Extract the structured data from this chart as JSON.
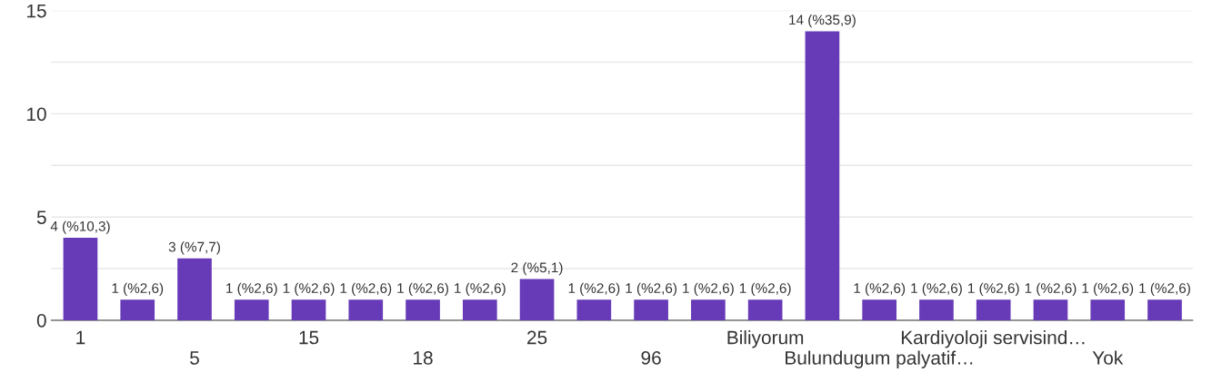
{
  "chart_data": {
    "type": "bar",
    "categories": [
      "1",
      null,
      "5",
      null,
      "15",
      null,
      "18",
      null,
      "25",
      null,
      "96",
      null,
      "Biliyorum",
      null,
      "Bulundugum palyatif…",
      null,
      "Kardiyoloji servisind…",
      null,
      "Yok",
      null
    ],
    "values": [
      4,
      1,
      3,
      1,
      1,
      1,
      1,
      1,
      2,
      1,
      1,
      1,
      1,
      14,
      1,
      1,
      1,
      1,
      1,
      1
    ],
    "value_labels": [
      "4 (%10,3)",
      "1 (%2,6)",
      "3 (%7,7)",
      "1 (%2,6)",
      "1 (%2,6)",
      "1 (%2,6)",
      "1 (%2,6)",
      "1 (%2,6)",
      "2 (%5,1)",
      "1 (%2,6)",
      "1 (%2,6)",
      "1 (%2,6)",
      "1 (%2,6)",
      "14 (%35,9)",
      "1 (%2,6)",
      "1 (%2,6)",
      "1 (%2,6)",
      "1 (%2,6)",
      "1 (%2,6)",
      "1 (%2,6)"
    ],
    "color": "#673ab7",
    "ylim": [
      0,
      15
    ],
    "yticks": [
      0,
      {
        "value": 2.5,
        "label": null
      },
      5,
      {
        "value": 7.5,
        "label": null
      },
      10,
      {
        "value": 12.5,
        "label": null
      },
      15
    ],
    "grid": "y"
  }
}
